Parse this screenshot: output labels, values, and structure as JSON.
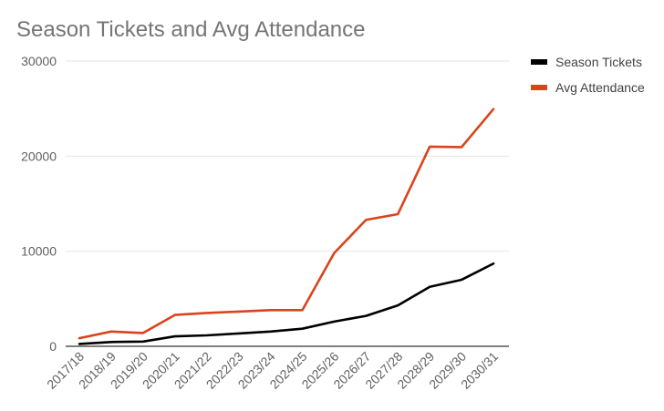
{
  "chart_data": {
    "type": "line",
    "title": "Season Tickets and Avg Attendance",
    "xlabel": "",
    "ylabel": "",
    "categories": [
      "2017/18",
      "2018/19",
      "2019/20",
      "2020/21",
      "2021/22",
      "2022/23",
      "2023/24",
      "2024/25",
      "2025/26",
      "2026/27",
      "2027/28",
      "2028/29",
      "2029/30",
      "2030/31"
    ],
    "series": [
      {
        "name": "Season Tickets",
        "color": "#000000",
        "values": [
          250,
          450,
          500,
          1050,
          1150,
          1350,
          1550,
          1850,
          2600,
          3200,
          4300,
          6250,
          7000,
          8700
        ]
      },
      {
        "name": "Avg Attendance",
        "color": "#d9441c",
        "values": [
          850,
          1550,
          1400,
          3300,
          3500,
          3650,
          3800,
          3800,
          9800,
          13300,
          13900,
          21000,
          20950,
          24950
        ]
      }
    ],
    "ylim": [
      0,
      30000
    ],
    "yticks": [
      0,
      10000,
      20000,
      30000
    ],
    "grid": true,
    "legend_position": "right"
  }
}
